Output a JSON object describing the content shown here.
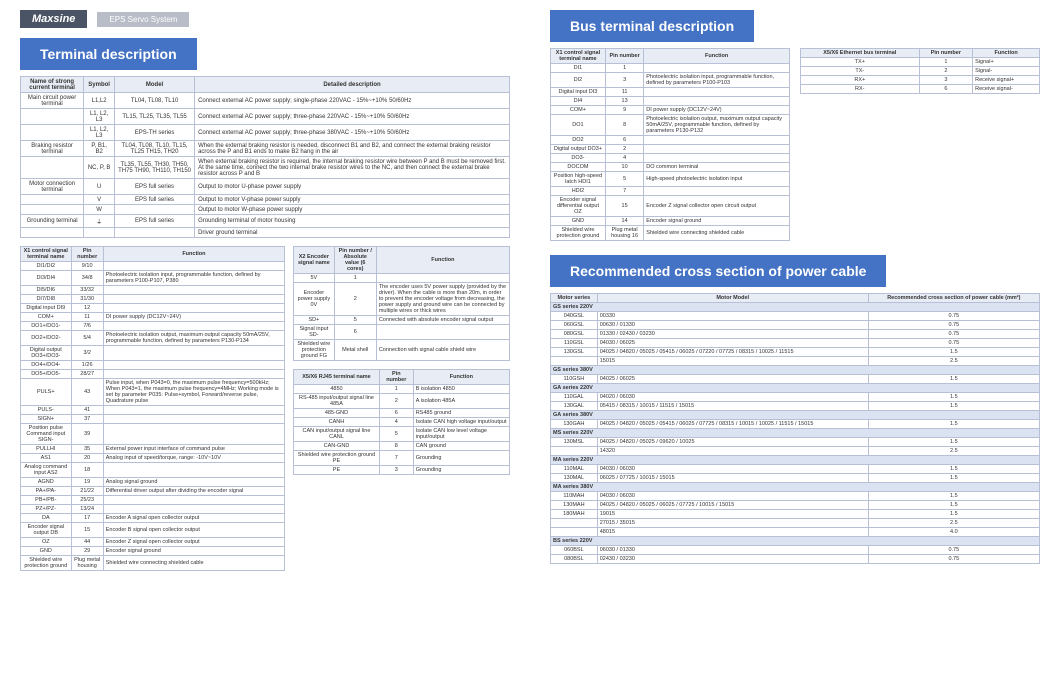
{
  "brand": "Maxsine",
  "subsystem": "EPS Servo System",
  "left": {
    "title": "Terminal description",
    "t1": {
      "headers": [
        "Name of strong current terminal",
        "Symbol",
        "Model",
        "Detailed description"
      ],
      "rows": [
        [
          "Main circuit power terminal",
          "L1,L2",
          "TL04, TL08, TL10",
          "Connect external AC power supply; single-phase 220VAC - 15%~+10% 50/60Hz"
        ],
        [
          "",
          "L1, L2, L3",
          "TL15, TL25, TL35, TL55",
          "Connect external AC power supply; three-phase 220VAC - 15%~+10% 50/60Hz"
        ],
        [
          "",
          "L1, L2, L3",
          "EPS-TH series",
          "Connect external AC power supply; three-phase 380VAC - 15%~+10% 50/60Hz"
        ],
        [
          "Braking resistor terminal",
          "P, B1, B2",
          "TL04, TL08, TL10, TL15, TL25 TH15, TH20",
          "When the external braking resistor is needed, disconnect B1 and B2, and connect the external braking resistor across the P and B1 ends to make B2 hang in the air"
        ],
        [
          "",
          "NC, P, B",
          "TL35, TL55, TH30, TH50, TH75 TH90, TH110, TH150",
          "When external braking resistor is required, the internal braking resistor wire between P and B must be removed first. At the same time, connect the two internal brake resistor wires to the NC, and then connect the external brake resistor across P and B"
        ],
        [
          "Motor connection terminal",
          "U",
          "EPS full series",
          "Output to motor U-phase power supply"
        ],
        [
          "",
          "V",
          "EPS full series",
          "Output to motor V-phase power supply"
        ],
        [
          "",
          "W",
          "",
          "Output to motor W-phase power supply"
        ],
        [
          "Grounding terminal",
          "⏚",
          "EPS full series",
          "Grounding terminal of motor housing"
        ],
        [
          "",
          "",
          "",
          "Driver ground terminal"
        ]
      ]
    },
    "t2": {
      "headers": [
        "X1 control signal terminal name",
        "Pin number",
        "Function"
      ],
      "rows": [
        [
          "DI1/DI2",
          "9/10",
          ""
        ],
        [
          "DI3/DI4",
          "34/8",
          "Photoelectric isolation input, programmable function, defined by parameters P100-P107, P380"
        ],
        [
          "DI5/DI6",
          "33/32",
          ""
        ],
        [
          "DI7/DI8",
          "31/30",
          ""
        ],
        [
          "Digital input  DI9",
          "12",
          ""
        ],
        [
          "COM+",
          "11",
          "DI power supply (DC12V~24V)"
        ],
        [
          "DO1+/DO1-",
          "7/6",
          ""
        ],
        [
          "DO2+/DO2-",
          "5/4",
          "Photoelectric isolation output, maximum output capacity 50mA/25V, programmable function, defined by parameters P130-P134"
        ],
        [
          "Digital output  DO3+/DO3-",
          "3/2",
          ""
        ],
        [
          "DO4+/DO4-",
          "1/26",
          ""
        ],
        [
          "DO5+/DO5-",
          "28/27",
          ""
        ],
        [
          "PULS+",
          "43",
          "Pulse input, when P043=0, the maximum pulse frequency=500kHz; When P043=1, the maximum pulse frequency=4MHz; Working mode is set by parameter P035: Pulse+symbol, Forward/reverse pulse, Quadrature pulse"
        ],
        [
          "PULS-",
          "41",
          ""
        ],
        [
          "SIGN+",
          "37",
          ""
        ],
        [
          "Position pulse Command input  SIGN-",
          "39",
          ""
        ],
        [
          "PULLHI",
          "35",
          "External power input interface of command pulse"
        ],
        [
          "AS1",
          "20",
          "Analog input of speed/torque, range: -10V~10V"
        ],
        [
          "Analog command input  AS2",
          "18",
          ""
        ],
        [
          "AGND",
          "19",
          "Analog signal ground"
        ],
        [
          "PA+/PA-",
          "21/22",
          "Differential driver output after dividing the encoder signal"
        ],
        [
          "PB+/PB-",
          "25/23",
          ""
        ],
        [
          "PZ+/PZ-",
          "13/24",
          ""
        ],
        [
          "DA",
          "17",
          "Encoder A signal open collector output"
        ],
        [
          "Encoder signal output  DB",
          "15",
          "Encoder B signal open collector output"
        ],
        [
          "OZ",
          "44",
          "Encoder Z signal open collector output"
        ],
        [
          "GND",
          "29",
          "Encoder signal ground"
        ],
        [
          "Shielded wire protection ground",
          "Plug metal housing",
          "Shielded wire connecting shielded cable"
        ]
      ]
    },
    "t3": {
      "headers": [
        "X2 Encoder signal name",
        "Pin number / Absolute value (6 cores)",
        "Function"
      ],
      "rows": [
        [
          "5V",
          "1",
          ""
        ],
        [
          "Encoder power supply  0V",
          "2",
          "The encoder uses 5V power supply (provided by the driver). When the cable is more than 20m, in order to prevent the encoder voltage from decreasing, the power supply and ground wire can be connected by multiple wires or thick wires"
        ],
        [
          "SD+",
          "5",
          "Connected with absolute encoder signal output"
        ],
        [
          "Signal input  SD-",
          "6",
          ""
        ],
        [
          "Shielded wire protection ground  FG",
          "Metal shell",
          "Connection with signal cable shield wire"
        ]
      ]
    },
    "t4": {
      "headers": [
        "X5/X6 RJ45 terminal name",
        "Pin number",
        "Function"
      ],
      "rows": [
        [
          "4850",
          "1",
          "B isolation 4850"
        ],
        [
          "RS-485 input/output signal line  485A",
          "2",
          "A isolation 485A"
        ],
        [
          "485-GND",
          "6",
          "RS485 ground"
        ],
        [
          "CANH",
          "4",
          "Isolate CAN high voltage input/output"
        ],
        [
          "CAN input/output signal line  CANL",
          "5",
          "Isolate CAN low level voltage input/output"
        ],
        [
          "CAN-GND",
          "8",
          "CAN ground"
        ],
        [
          "Shielded wire protection ground  PE",
          "7",
          "Grounding"
        ],
        [
          "PE",
          "3",
          "Grounding"
        ]
      ]
    }
  },
  "right": {
    "title1": "Bus terminal description",
    "t5": {
      "headers": [
        "X1 control signal terminal name",
        "Pin number",
        "Function"
      ],
      "rows": [
        [
          "DI1",
          "1",
          ""
        ],
        [
          "DI2",
          "3",
          "Photoelectric isolation input, programmable function, defined by parameters P100-P103"
        ],
        [
          "Digital input  DI3",
          "11",
          ""
        ],
        [
          "DI4",
          "13",
          ""
        ],
        [
          "COM+",
          "9",
          "DI power supply (DC12V~24V)"
        ],
        [
          "DO1",
          "8",
          "Photoelectric isolation output, maximum output capacity 50mA/25V, programmable function, defined by parameters P130-P132"
        ],
        [
          "DO2",
          "6",
          ""
        ],
        [
          "Digital output  DO3+",
          "2",
          ""
        ],
        [
          "DO3-",
          "4",
          ""
        ],
        [
          "DOCOM",
          "10",
          "DO common terminal"
        ],
        [
          "Position high-speed latch  HDI1",
          "5",
          "High-speed photoelectric isolation input"
        ],
        [
          "HDI2",
          "7",
          ""
        ],
        [
          "Encoder signal differential output  OZ",
          "15",
          "Encoder Z signal collector open circuit output"
        ],
        [
          "GND",
          "14",
          "Encoder signal ground"
        ],
        [
          "Shielded wire protection ground",
          "Plug metal housing  16",
          "Shielded wire connecting shielded cable"
        ]
      ]
    },
    "t6": {
      "headers": [
        "X5/X6 Ethernet bus terminal",
        "Pin number",
        "Function"
      ],
      "rows": [
        [
          "TX+",
          "1",
          "Signal+"
        ],
        [
          "TX-",
          "2",
          "Signal-"
        ],
        [
          "RX+",
          "3",
          "Receive signal+"
        ],
        [
          "RX-",
          "6",
          "Receive signal-"
        ]
      ]
    },
    "title2": "Recommended cross section of power cable",
    "t7": {
      "headers": [
        "Motor series",
        "Motor Model",
        "Recommended cross section of power cable (mm²)"
      ],
      "groups": [
        {
          "h": "GS series 220V",
          "rows": [
            [
              "040GSL",
              "00330",
              "0.75"
            ],
            [
              "060GSL",
              "00630 / 01330",
              "0.75"
            ],
            [
              "080GSL",
              "01330 / 02430 / 03230",
              "0.75"
            ],
            [
              "110GSL",
              "04030 / 06025",
              "0.75"
            ],
            [
              "130GSL",
              "04025 / 04820 / 05025 / 05415 / 06025 / 07220 / 07725 / 08315 / 10025 / 11515",
              "1.5"
            ],
            [
              "",
              "15015",
              "2.5"
            ]
          ]
        },
        {
          "h": "GS series 380V",
          "rows": [
            [
              "110GSH",
              "04025 / 06025",
              "1.5"
            ]
          ]
        },
        {
          "h": "GA series 220V",
          "rows": [
            [
              "110GAL",
              "04020 / 06030",
              "1.5"
            ],
            [
              "130GAL",
              "05415 / 08315 / 10015 / 11515 / 15015",
              "1.5"
            ]
          ]
        },
        {
          "h": "GA series 380V",
          "rows": [
            [
              "130GAH",
              "04025 / 04820 / 05025 / 05415 / 06025 / 07725 / 08315 / 10015 / 10025 / 11515 / 15015",
              "1.5"
            ]
          ]
        },
        {
          "h": "MS series 220V",
          "rows": [
            [
              "130MSL",
              "04025 / 04820 / 05025 / 09620 / 10025",
              "1.5"
            ],
            [
              "",
              "14320",
              "2.5"
            ]
          ]
        },
        {
          "h": "MA series 220V",
          "rows": [
            [
              "110MAL",
              "04030 / 06030",
              "1.5"
            ],
            [
              "130MAL",
              "06025 / 07725 / 10015 / 15015",
              "1.5"
            ]
          ]
        },
        {
          "h": "MA series 380V",
          "rows": [
            [
              "110MAH",
              "04030 / 06030",
              "1.5"
            ],
            [
              "130MAH",
              "04025 / 04820 / 05025 / 06025 / 07725 / 10015 / 15015",
              "1.5"
            ],
            [
              "180MAH",
              "19015",
              "1.5"
            ],
            [
              "",
              "27015 / 35015",
              "2.5"
            ],
            [
              "",
              "48015",
              "4.0"
            ]
          ]
        },
        {
          "h": "BS series 220V",
          "rows": [
            [
              "060BSL",
              "06030 / 01330",
              "0.75"
            ],
            [
              "080BSL",
              "02430 / 03230",
              "0.75"
            ]
          ]
        }
      ]
    }
  }
}
